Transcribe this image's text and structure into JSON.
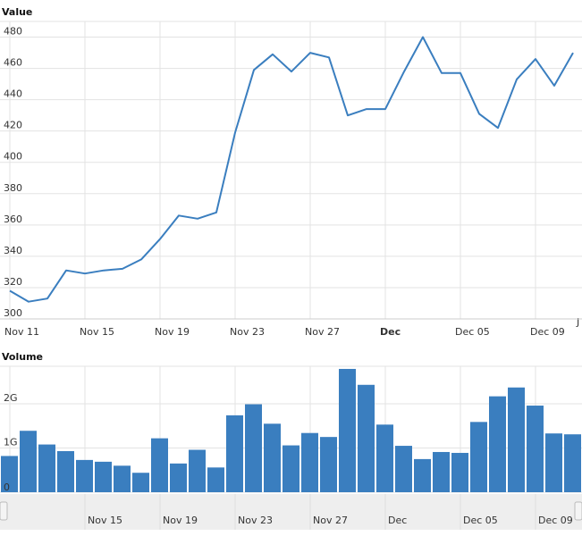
{
  "chart_data": [
    {
      "type": "line",
      "title": "Value",
      "xlabel": "",
      "ylabel": "",
      "ylim": [
        300,
        490
      ],
      "yticks": [
        300,
        320,
        340,
        360,
        380,
        400,
        420,
        440,
        460,
        480
      ],
      "grid": true,
      "color": "#3a7ebf",
      "x_ticks": [
        {
          "label": "Nov 11",
          "date": "2016-11-11",
          "bold": false
        },
        {
          "label": "Nov 15",
          "date": "2016-11-15",
          "bold": false
        },
        {
          "label": "Nov 19",
          "date": "2016-11-19",
          "bold": false
        },
        {
          "label": "Nov 23",
          "date": "2016-11-23",
          "bold": false
        },
        {
          "label": "Nov 27",
          "date": "2016-11-27",
          "bold": false
        },
        {
          "label": "Dec",
          "date": "2016-12-01",
          "bold": true
        },
        {
          "label": "Dec 05",
          "date": "2016-12-05",
          "bold": false
        },
        {
          "label": "Dec 09",
          "date": "2016-12-09",
          "bold": false
        }
      ],
      "trailing_tick_label": "J",
      "series": [
        {
          "x": [
            "2016-11-11",
            "2016-11-12",
            "2016-11-13",
            "2016-11-14",
            "2016-11-15",
            "2016-11-16",
            "2016-11-17",
            "2016-11-18",
            "2016-11-19",
            "2016-11-20",
            "2016-11-21",
            "2016-11-22",
            "2016-11-23",
            "2016-11-24",
            "2016-11-25",
            "2016-11-26",
            "2016-11-27",
            "2016-11-28",
            "2016-11-29",
            "2016-11-30",
            "2016-12-01",
            "2016-12-02",
            "2016-12-03",
            "2016-12-04",
            "2016-12-05",
            "2016-12-06",
            "2016-12-07",
            "2016-12-08",
            "2016-12-09",
            "2016-12-10",
            "2016-12-11"
          ],
          "values": [
            318,
            311,
            313,
            331,
            329,
            331,
            332,
            338,
            351,
            366,
            364,
            368,
            419,
            459,
            469,
            458,
            470,
            467,
            430,
            434,
            434,
            458,
            480,
            457,
            457,
            431,
            422,
            453,
            466,
            449,
            470
          ]
        }
      ]
    },
    {
      "type": "bar",
      "title": "Volume",
      "ylim": [
        0,
        2.85
      ],
      "yticks": [
        {
          "value": 0,
          "label": "0"
        },
        {
          "value": 1,
          "label": "1G"
        },
        {
          "value": 2,
          "label": "2G"
        }
      ],
      "grid": true,
      "color": "#3a7ebf",
      "x": [
        "2016-11-11",
        "2016-11-12",
        "2016-11-13",
        "2016-11-14",
        "2016-11-15",
        "2016-11-16",
        "2016-11-17",
        "2016-11-18",
        "2016-11-19",
        "2016-11-20",
        "2016-11-21",
        "2016-11-22",
        "2016-11-23",
        "2016-11-24",
        "2016-11-25",
        "2016-11-26",
        "2016-11-27",
        "2016-11-28",
        "2016-11-29",
        "2016-11-30",
        "2016-12-01",
        "2016-12-02",
        "2016-12-03",
        "2016-12-04",
        "2016-12-05",
        "2016-12-06",
        "2016-12-07",
        "2016-12-08",
        "2016-12-09",
        "2016-12-10",
        "2016-12-11"
      ],
      "values": [
        0.82,
        1.39,
        1.08,
        0.93,
        0.73,
        0.69,
        0.6,
        0.44,
        1.22,
        0.65,
        0.96,
        0.56,
        1.74,
        1.99,
        1.55,
        1.06,
        1.34,
        1.25,
        2.79,
        2.43,
        1.53,
        1.05,
        0.75,
        0.91,
        0.89,
        1.59,
        2.17,
        2.37,
        1.96,
        1.33,
        1.31
      ],
      "unit": "G"
    }
  ],
  "navigator": {
    "labels": [
      "Nov 15",
      "Nov 19",
      "Nov 23",
      "Nov 27",
      "Dec",
      "Dec 05",
      "Dec 09"
    ]
  }
}
